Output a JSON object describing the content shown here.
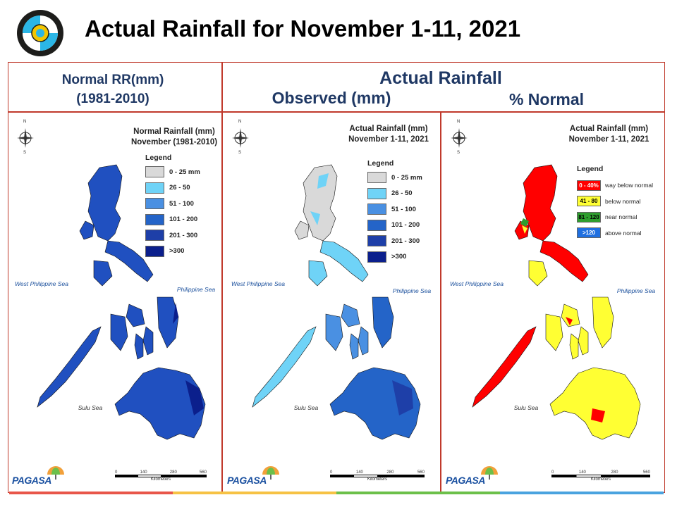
{
  "slide": {
    "title": "Actual Rainfall for November 1-11, 2021"
  },
  "headers": {
    "normal_line1": "Normal RR(mm)",
    "normal_line2": "(1981-2010)",
    "actual": "Actual Rainfall",
    "observed": "Observed (mm)",
    "percent": "% Normal"
  },
  "maps": [
    {
      "title_line1": "Normal Rainfall (mm)",
      "title_line2": "November (1981-2010)",
      "legend_title": "Legend",
      "legend": [
        {
          "label": "0 - 25 mm",
          "color": "#d9d9d9"
        },
        {
          "label": "26 - 50",
          "color": "#6fd3f7"
        },
        {
          "label": "51 - 100",
          "color": "#4a90e2"
        },
        {
          "label": "101 - 200",
          "color": "#2464c8"
        },
        {
          "label": "201 - 300",
          "color": "#1e3fa8"
        },
        {
          "label": ">300",
          "color": "#0b1f8c"
        }
      ]
    },
    {
      "title_line1": "Actual Rainfall (mm)",
      "title_line2": "November 1-11, 2021",
      "legend_title": "Legend",
      "legend": [
        {
          "label": "0 - 25 mm",
          "color": "#d9d9d9"
        },
        {
          "label": "26 - 50",
          "color": "#6fd3f7"
        },
        {
          "label": "51 - 100",
          "color": "#4a90e2"
        },
        {
          "label": "101 - 200",
          "color": "#2464c8"
        },
        {
          "label": "201 - 300",
          "color": "#1e3fa8"
        },
        {
          "label": ">300",
          "color": "#0b1f8c"
        }
      ]
    },
    {
      "title_line1": "Actual Rainfall (mm)",
      "title_line2": "November 1-11, 2021",
      "legend_title": "Legend",
      "legend": [
        {
          "swatch": "0 - 40%",
          "label": "way below normal",
          "color": "#ff0000"
        },
        {
          "swatch": "41 - 80",
          "label": "below normal",
          "color": "#ffff33"
        },
        {
          "swatch": "81 - 120",
          "label": "near normal",
          "color": "#2e9e2e"
        },
        {
          "swatch": ">120",
          "label": "above normal",
          "color": "#1f6fe0"
        }
      ]
    }
  ],
  "labels": {
    "west_sea": "West Philippine Sea",
    "philippine_sea": "Philippine Sea",
    "sulu_sea": "Sulu Sea",
    "km_ticks": [
      "0",
      "140",
      "280",
      "560"
    ],
    "km_unit": "Kilometers",
    "agency": "PAGASA",
    "north": "N",
    "south": "S"
  },
  "colors": {
    "frame": "#c0392b",
    "header_text": "#1f3864",
    "bottom_bar": [
      "#e8564a",
      "#f6c244",
      "#6cc04a",
      "#4aa3df"
    ]
  }
}
